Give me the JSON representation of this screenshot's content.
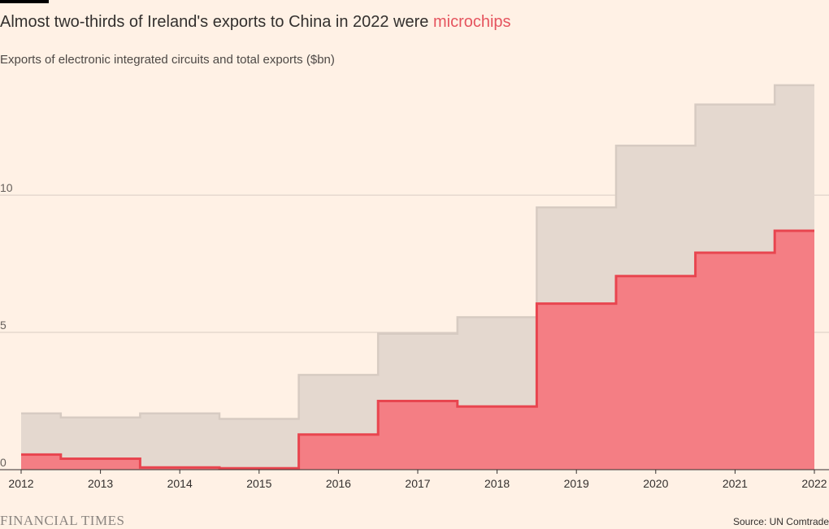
{
  "header": {
    "title_prefix": "Almost two-thirds of Ireland's exports to China in 2022 were ",
    "title_highlight": "microchips",
    "subtitle": "Exports of electronic integrated circuits and total exports ($bn)"
  },
  "footer": {
    "logo": "FINANCIAL TIMES",
    "source": "Source: UN Comtrade"
  },
  "colors": {
    "background": "#fff1e5",
    "total_fill": "#e4d8cf",
    "total_line": "#d7cbc2",
    "chips_fill": "#f47e84",
    "chips_line": "#e8454f",
    "gridline": "#d9cdc4"
  },
  "chart_data": {
    "type": "area",
    "step": true,
    "title": "Almost two-thirds of Ireland's exports to China in 2022 were microchips",
    "subtitle": "Exports of electronic integrated circuits and total exports ($bn)",
    "x_ticks": [
      "2012",
      "2013",
      "2014",
      "2015",
      "2016",
      "2017",
      "2018",
      "2019",
      "2020",
      "2021",
      "2022"
    ],
    "y_ticks": [
      "0",
      "5",
      "10"
    ],
    "ylim": [
      0,
      14.5
    ],
    "xlim": [
      2012,
      2022
    ],
    "grid": true,
    "series": [
      {
        "name": "total exports",
        "x": [
          2012,
          2013,
          2014,
          2015,
          2016,
          2017,
          2018,
          2019,
          2020,
          2021,
          2022
        ],
        "values": [
          2.05,
          1.9,
          2.05,
          1.85,
          3.45,
          4.95,
          5.55,
          9.55,
          11.8,
          13.3,
          14.0
        ]
      },
      {
        "name": "microchips",
        "x": [
          2012,
          2013,
          2014,
          2015,
          2016,
          2017,
          2018,
          2019,
          2020,
          2021,
          2022
        ],
        "values": [
          0.55,
          0.4,
          0.08,
          0.05,
          1.28,
          2.5,
          2.3,
          6.05,
          7.05,
          7.9,
          8.7
        ]
      }
    ]
  }
}
